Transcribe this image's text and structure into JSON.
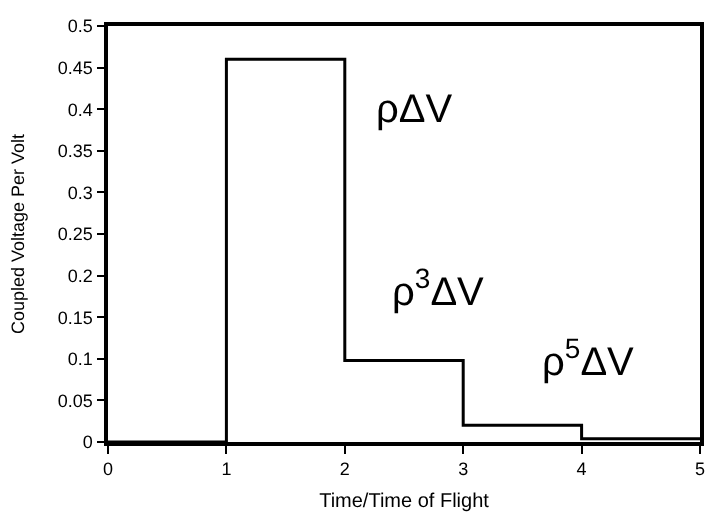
{
  "chart_data": {
    "type": "step",
    "xlabel": "Time/Time of Flight",
    "ylabel": "Coupled Voltage Per Volt",
    "x": [
      0,
      1,
      2,
      3,
      4,
      5
    ],
    "series": [
      {
        "color": "#000000",
        "values": [
          0,
          0.46,
          0.098,
          0.02,
          0.004,
          0.004
        ]
      }
    ],
    "xlim": [
      0,
      5
    ],
    "xticks": [
      0,
      1,
      2,
      3,
      4,
      5
    ],
    "ylim": [
      0,
      0.5
    ],
    "yticks": [
      0,
      0.05,
      0.1,
      0.15,
      0.2,
      0.25,
      0.3,
      0.35,
      0.4,
      0.45,
      0.5
    ],
    "marker": "none",
    "line_style": "solid",
    "annotations": [
      "ρΔV",
      "ρ$^{3}$ΔV",
      "ρ$^{5}$ΔV"
    ]
  }
}
